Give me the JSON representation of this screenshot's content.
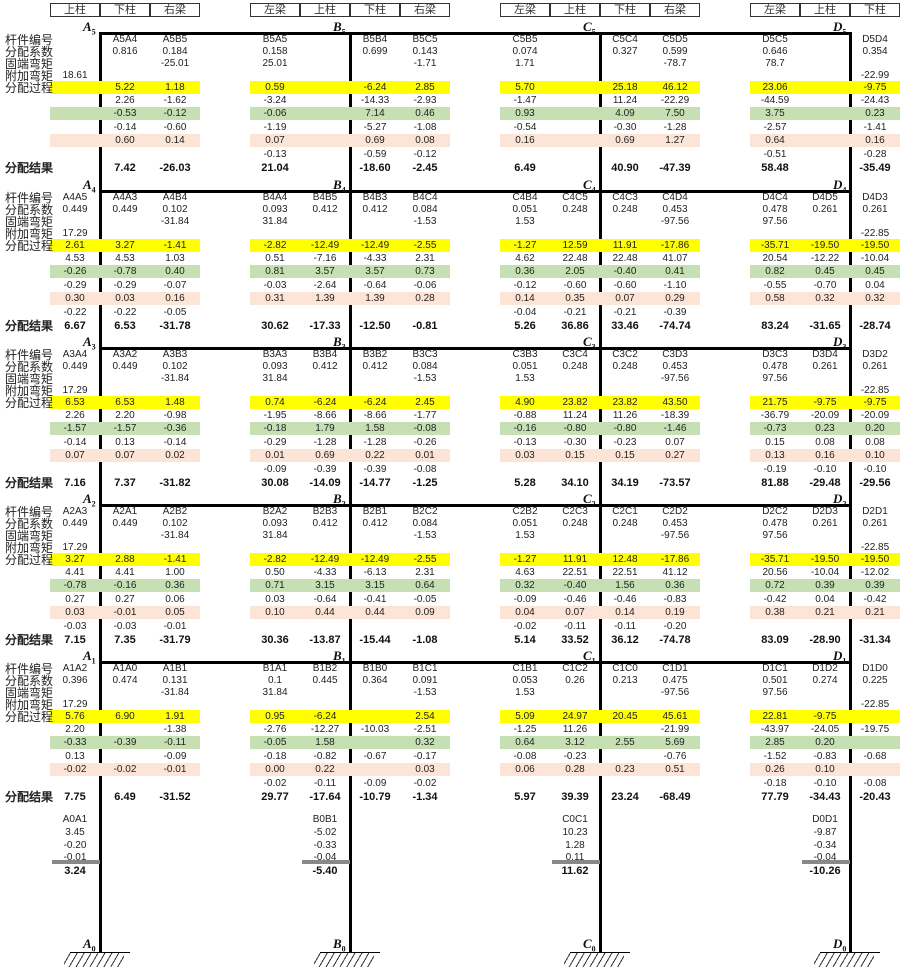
{
  "colors": {
    "yellow": "#ffff00",
    "green": "#c6e0b4",
    "pink": "#fce4d6"
  },
  "row_labels": [
    "杆件编号",
    "分配系数",
    "固端弯矩",
    "附加弯矩",
    "分配过程"
  ],
  "result_label": "分配结果",
  "row_bands": [
    "",
    "",
    "",
    "",
    "yellow",
    "",
    "green",
    "",
    "pink",
    "",
    ""
  ],
  "joints": [
    {
      "id": "A",
      "slots": [
        "上柱",
        "下柱",
        "右梁"
      ]
    },
    {
      "id": "B",
      "slots": [
        "左梁",
        "上柱",
        "下柱",
        "右梁"
      ]
    },
    {
      "id": "C",
      "slots": [
        "左梁",
        "上柱",
        "下柱",
        "右梁"
      ]
    },
    {
      "id": "D",
      "slots": [
        "左梁",
        "上柱",
        "下柱"
      ]
    }
  ],
  "floors": [
    {
      "level": "5",
      "cells": {
        "A": {
          "上柱": [
            "",
            "",
            "",
            "18.61",
            "",
            "",
            "",
            "",
            "",
            "",
            ""
          ],
          "下柱": [
            "A5A4",
            "0.816",
            "",
            "",
            "5.22",
            "2.26",
            "-0.53",
            "-0.14",
            "0.60",
            "",
            "7.42"
          ],
          "右梁": [
            "A5B5",
            "0.184",
            "-25.01",
            "",
            "1.18",
            "-1.62",
            "-0.12",
            "-0.60",
            "0.14",
            "",
            "-26.03"
          ]
        },
        "B": {
          "左梁": [
            "B5A5",
            "0.158",
            "25.01",
            "",
            "0.59",
            "-3.24",
            "-0.06",
            "-1.19",
            "0.07",
            "-0.13",
            "21.04"
          ],
          "下柱": [
            "B5B4",
            "0.699",
            "",
            "",
            "-6.24",
            "-14.33",
            "7.14",
            "-5.27",
            "0.69",
            "-0.59",
            "-18.60"
          ],
          "右梁": [
            "B5C5",
            "0.143",
            "-1.71",
            "",
            "2.85",
            "-2.93",
            "0.46",
            "-1.08",
            "0.08",
            "-0.12",
            "-2.45"
          ]
        },
        "C": {
          "左梁": [
            "C5B5",
            "0.074",
            "1.71",
            "",
            "5.70",
            "-1.47",
            "0.93",
            "-0.54",
            "0.16",
            "",
            "6.49"
          ],
          "下柱": [
            "C5C4",
            "0.327",
            "",
            "",
            "25.18",
            "11.24",
            "4.09",
            "-0.30",
            "0.69",
            "",
            "40.90"
          ],
          "右梁": [
            "C5D5",
            "0.599",
            "-78.7",
            "",
            "46.12",
            "-22.29",
            "7.50",
            "-1.28",
            "1.27",
            "",
            "-47.39"
          ]
        },
        "D": {
          "左梁": [
            "D5C5",
            "0.646",
            "78.7",
            "",
            "23.06",
            "-44.59",
            "3.75",
            "-2.57",
            "0.64",
            "-0.51",
            "58.48"
          ],
          "下柱": [
            "D5D4",
            "0.354",
            "",
            "-22.99",
            "-9.75",
            "-24.43",
            "0.23",
            "-1.41",
            "0.16",
            "-0.28",
            "-35.49"
          ]
        }
      }
    },
    {
      "level": "4",
      "cells": {
        "A": {
          "上柱": [
            "A4A5",
            "0.449",
            "",
            "17.29",
            "2.61",
            "4.53",
            "-0.26",
            "-0.29",
            "0.30",
            "-0.22",
            "6.67"
          ],
          "下柱": [
            "A4A3",
            "0.449",
            "",
            "",
            "3.27",
            "4.53",
            "-0.78",
            "-0.29",
            "0.03",
            "-0.22",
            "6.53"
          ],
          "右梁": [
            "A4B4",
            "0.102",
            "-31.84",
            "",
            "-1.41",
            "1.03",
            "0.40",
            "-0.07",
            "0.16",
            "-0.05",
            "-31.78"
          ]
        },
        "B": {
          "左梁": [
            "B4A4",
            "0.093",
            "31.84",
            "",
            "-2.82",
            "0.51",
            "0.81",
            "-0.03",
            "0.31",
            "",
            "30.62"
          ],
          "上柱": [
            "B4B5",
            "0.412",
            "",
            "",
            "-12.49",
            "-7.16",
            "3.57",
            "-2.64",
            "1.39",
            "",
            "-17.33"
          ],
          "下柱": [
            "B4B3",
            "0.412",
            "",
            "",
            "-12.49",
            "-4.33",
            "3.57",
            "-0.64",
            "1.39",
            "",
            "-12.50"
          ],
          "右梁": [
            "B4C4",
            "0.084",
            "-1.53",
            "",
            "-2.55",
            "2.31",
            "0.73",
            "-0.06",
            "0.28",
            "",
            "-0.81"
          ]
        },
        "C": {
          "左梁": [
            "C4B4",
            "0.051",
            "1.53",
            "",
            "-1.27",
            "4.62",
            "0.36",
            "-0.12",
            "0.14",
            "-0.04",
            "5.26"
          ],
          "上柱": [
            "C4C5",
            "0.248",
            "",
            "",
            "12.59",
            "22.48",
            "2.05",
            "-0.60",
            "0.35",
            "-0.21",
            "36.86"
          ],
          "下柱": [
            "C4C3",
            "0.248",
            "",
            "",
            "11.91",
            "22.48",
            "-0.40",
            "-0.60",
            "0.07",
            "-0.21",
            "33.46"
          ],
          "右梁": [
            "C4D4",
            "0.453",
            "-97.56",
            "",
            "-17.86",
            "41.07",
            "0.41",
            "-1.10",
            "0.29",
            "-0.39",
            "-74.74"
          ]
        },
        "D": {
          "左梁": [
            "D4C4",
            "0.478",
            "97.56",
            "",
            "-35.71",
            "20.54",
            "0.82",
            "-0.55",
            "0.58",
            "",
            "83.24"
          ],
          "上柱": [
            "D4D5",
            "0.261",
            "",
            "",
            "-19.50",
            "-12.22",
            "0.45",
            "-0.70",
            "0.32",
            "",
            "-31.65"
          ],
          "下柱": [
            "D4D3",
            "0.261",
            "",
            "-22.85",
            "-19.50",
            "-10.04",
            "0.45",
            "0.04",
            "0.32",
            "",
            "-28.74"
          ]
        }
      }
    },
    {
      "level": "3",
      "cells": {
        "A": {
          "上柱": [
            "A3A4",
            "0.449",
            "",
            "17.29",
            "6.53",
            "2.26",
            "-1.57",
            "-0.14",
            "0.07",
            "",
            "7.16"
          ],
          "下柱": [
            "A3A2",
            "0.449",
            "",
            "",
            "6.53",
            "2.20",
            "-1.57",
            "0.13",
            "0.07",
            "",
            "7.37"
          ],
          "右梁": [
            "A3B3",
            "0.102",
            "-31.84",
            "",
            "1.48",
            "-0.98",
            "-0.36",
            "-0.14",
            "0.02",
            "",
            "-31.82"
          ]
        },
        "B": {
          "左梁": [
            "B3A3",
            "0.093",
            "31.84",
            "",
            "0.74",
            "-1.95",
            "-0.18",
            "-0.29",
            "0.01",
            "-0.09",
            "30.08"
          ],
          "上柱": [
            "B3B4",
            "0.412",
            "",
            "",
            "-6.24",
            "-8.66",
            "1.79",
            "-1.28",
            "0.69",
            "-0.39",
            "-14.09"
          ],
          "下柱": [
            "B3B2",
            "0.412",
            "",
            "",
            "-6.24",
            "-8.66",
            "1.58",
            "-1.28",
            "0.22",
            "-0.39",
            "-14.77"
          ],
          "右梁": [
            "B3C3",
            "0.084",
            "-1.53",
            "",
            "2.45",
            "-1.77",
            "-0.08",
            "-0.26",
            "0.01",
            "-0.08",
            "-1.25"
          ]
        },
        "C": {
          "左梁": [
            "C3B3",
            "0.051",
            "1.53",
            "",
            "4.90",
            "-0.88",
            "-0.16",
            "-0.13",
            "0.03",
            "",
            "5.28"
          ],
          "上柱": [
            "C3C4",
            "0.248",
            "",
            "",
            "23.82",
            "11.24",
            "-0.80",
            "-0.30",
            "0.15",
            "",
            "34.10"
          ],
          "下柱": [
            "C3C2",
            "0.248",
            "",
            "",
            "23.82",
            "11.26",
            "-0.80",
            "-0.23",
            "0.15",
            "",
            "34.19"
          ],
          "右梁": [
            "C3D3",
            "0.453",
            "-97.56",
            "",
            "43.50",
            "-18.39",
            "-1.46",
            "0.07",
            "0.27",
            "",
            "-73.57"
          ]
        },
        "D": {
          "左梁": [
            "D3C3",
            "0.478",
            "97.56",
            "",
            "21.75",
            "-36.79",
            "-0.73",
            "0.15",
            "0.13",
            "-0.19",
            "81.88"
          ],
          "上柱": [
            "D3D4",
            "0.261",
            "",
            "",
            "-9.75",
            "-20.09",
            "0.23",
            "0.08",
            "0.16",
            "-0.10",
            "-29.48"
          ],
          "下柱": [
            "D3D2",
            "0.261",
            "",
            "-22.85",
            "-9.75",
            "-20.09",
            "0.20",
            "0.08",
            "0.10",
            "-0.10",
            "-29.56"
          ]
        }
      }
    },
    {
      "level": "2",
      "cells": {
        "A": {
          "上柱": [
            "A2A3",
            "0.449",
            "",
            "17.29",
            "3.27",
            "4.41",
            "-0.78",
            "0.27",
            "0.03",
            "-0.03",
            "7.15"
          ],
          "下柱": [
            "A2A1",
            "0.449",
            "",
            "",
            "2.88",
            "4.41",
            "-0.16",
            "0.27",
            "-0.01",
            "-0.03",
            "7.35"
          ],
          "右梁": [
            "A2B2",
            "0.102",
            "-31.84",
            "",
            "-1.41",
            "1.00",
            "0.36",
            "0.06",
            "0.05",
            "-0.01",
            "-31.79"
          ]
        },
        "B": {
          "左梁": [
            "B2A2",
            "0.093",
            "31.84",
            "",
            "-2.82",
            "0.50",
            "0.71",
            "0.03",
            "0.10",
            "",
            "30.36"
          ],
          "上柱": [
            "B2B3",
            "0.412",
            "",
            "",
            "-12.49",
            "-4.33",
            "3.15",
            "-0.64",
            "0.44",
            "",
            "-13.87"
          ],
          "下柱": [
            "B2B1",
            "0.412",
            "",
            "",
            "-12.49",
            "-6.13",
            "3.15",
            "-0.41",
            "0.44",
            "",
            "-15.44"
          ],
          "右梁": [
            "B2C2",
            "0.084",
            "-1.53",
            "",
            "-2.55",
            "2.31",
            "0.64",
            "-0.05",
            "0.09",
            "",
            "-1.08"
          ]
        },
        "C": {
          "左梁": [
            "C2B2",
            "0.051",
            "1.53",
            "",
            "-1.27",
            "4.63",
            "0.32",
            "-0.09",
            "0.04",
            "-0.02",
            "5.14"
          ],
          "上柱": [
            "C2C3",
            "0.248",
            "",
            "",
            "11.91",
            "22.51",
            "-0.40",
            "-0.46",
            "0.07",
            "-0.11",
            "33.52"
          ],
          "下柱": [
            "C2C1",
            "0.248",
            "",
            "",
            "12.48",
            "22.51",
            "1.56",
            "-0.46",
            "0.14",
            "-0.11",
            "36.12"
          ],
          "右梁": [
            "C2D2",
            "0.453",
            "-97.56",
            "",
            "-17.86",
            "41.12",
            "0.36",
            "-0.83",
            "0.19",
            "-0.20",
            "-74.78"
          ]
        },
        "D": {
          "左梁": [
            "D2C2",
            "0.478",
            "97.56",
            "",
            "-35.71",
            "20.56",
            "0.72",
            "-0.42",
            "0.38",
            "",
            "83.09"
          ],
          "上柱": [
            "D2D3",
            "0.261",
            "",
            "",
            "-19.50",
            "-10.04",
            "0.39",
            "0.04",
            "0.21",
            "",
            "-28.90"
          ],
          "下柱": [
            "D2D1",
            "0.261",
            "",
            "-22.85",
            "-19.50",
            "-12.02",
            "0.39",
            "-0.42",
            "0.21",
            "",
            "-31.34"
          ]
        }
      }
    },
    {
      "level": "1",
      "cells": {
        "A": {
          "上柱": [
            "A1A2",
            "0.396",
            "",
            "17.29",
            "5.76",
            "2.20",
            "-0.33",
            "0.13",
            "-0.02",
            "",
            "7.75"
          ],
          "下柱": [
            "A1A0",
            "0.474",
            "",
            "",
            "6.90",
            "",
            "-0.39",
            "",
            "-0.02",
            "",
            "6.49"
          ],
          "右梁": [
            "A1B1",
            "0.131",
            "-31.84",
            "",
            "1.91",
            "-1.38",
            "-0.11",
            "-0.09",
            "-0.01",
            "",
            "-31.52"
          ]
        },
        "B": {
          "左梁": [
            "B1A1",
            "0.1",
            "31.84",
            "",
            "0.95",
            "-2.76",
            "-0.05",
            "-0.18",
            "0.00",
            "-0.02",
            "29.77"
          ],
          "上柱": [
            "B1B2",
            "0.445",
            "",
            "",
            "-6.24",
            "-12.27",
            "1.58",
            "-0.82",
            "0.22",
            "-0.11",
            "-17.64"
          ],
          "下柱": [
            "B1B0",
            "0.364",
            "",
            "",
            "",
            "-10.03",
            "",
            "-0.67",
            "",
            "-0.09",
            "-10.79"
          ],
          "右梁": [
            "B1C1",
            "0.091",
            "-1.53",
            "",
            "2.54",
            "-2.51",
            "0.32",
            "-0.17",
            "0.03",
            "-0.02",
            "-1.34"
          ]
        },
        "C": {
          "左梁": [
            "C1B1",
            "0.053",
            "1.53",
            "",
            "5.09",
            "-1.25",
            "0.64",
            "-0.08",
            "0.06",
            "",
            "5.97"
          ],
          "上柱": [
            "C1C2",
            "0.26",
            "",
            "",
            "24.97",
            "11.26",
            "3.12",
            "-0.23",
            "0.28",
            "",
            "39.39"
          ],
          "下柱": [
            "C1C0",
            "0.213",
            "",
            "",
            "20.45",
            "",
            "2.55",
            "",
            "0.23",
            "",
            "23.24"
          ],
          "右梁": [
            "C1D1",
            "0.475",
            "-97.56",
            "",
            "45.61",
            "-21.99",
            "5.69",
            "-0.76",
            "0.51",
            "",
            "-68.49"
          ]
        },
        "D": {
          "左梁": [
            "D1C1",
            "0.501",
            "97.56",
            "",
            "22.81",
            "-43.97",
            "2.85",
            "-1.52",
            "0.26",
            "-0.18",
            "77.79"
          ],
          "上柱": [
            "D1D2",
            "0.274",
            "",
            "",
            "-9.75",
            "-24.05",
            "0.20",
            "-0.83",
            "0.10",
            "-0.10",
            "-34.43"
          ],
          "下柱": [
            "D1D0",
            "0.225",
            "",
            "-22.85",
            "",
            "-19.75",
            "",
            "-0.68",
            "",
            "-0.08",
            "-20.43"
          ]
        }
      }
    }
  ],
  "base": [
    {
      "joint": "A",
      "values": [
        "A0A1",
        "3.45",
        "-0.20",
        "-0.01"
      ],
      "result": "3.24"
    },
    {
      "joint": "B",
      "values": [
        "B0B1",
        "-5.02",
        "-0.33",
        "-0.04"
      ],
      "result": "-5.40"
    },
    {
      "joint": "C",
      "values": [
        "C0C1",
        "10.23",
        "1.28",
        "0.11"
      ],
      "result": "11.62"
    },
    {
      "joint": "D",
      "values": [
        "D0D1",
        "-9.87",
        "-0.34",
        "-0.04"
      ],
      "result": "-10.26"
    }
  ],
  "base_level": "0"
}
